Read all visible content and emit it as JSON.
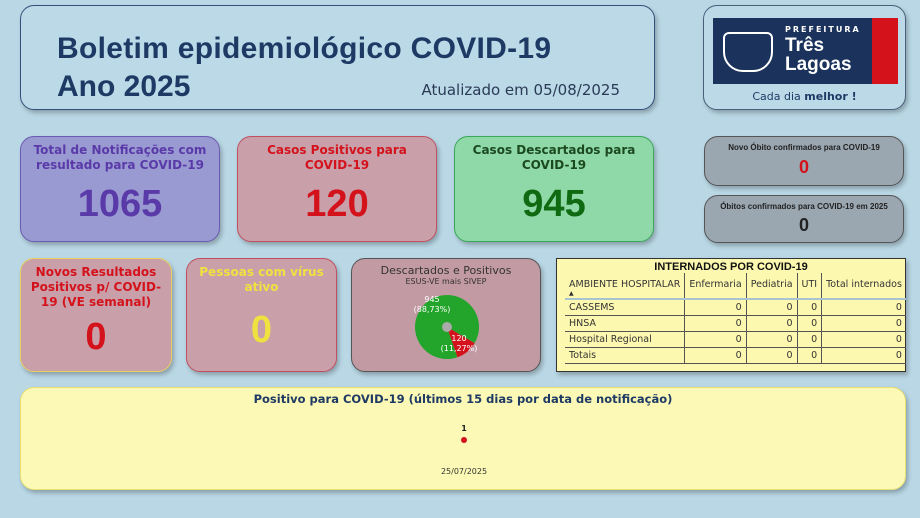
{
  "header": {
    "title_line1": "Boletim epidemiológico COVID-19",
    "title_line2": "Ano 2025",
    "updated": "Atualizado em 05/08/2025"
  },
  "logo": {
    "prefeitura": "PREFEITURA",
    "city_line1": "Três",
    "city_line2": "Lagoas",
    "slogan_pre": "Cada dia ",
    "slogan_bold": "melhor !",
    "colors": {
      "navy": "#1b335c",
      "red": "#d4121c"
    }
  },
  "cards": {
    "total": {
      "label": "Total de Notificações com resultado para COVID-19",
      "value": "1065",
      "color": "#5a3aa8"
    },
    "positivos": {
      "label": "Casos Positivos para COVID-19",
      "value": "120",
      "color": "#d4121c"
    },
    "descartados": {
      "label": "Casos Descartados para COVID-19",
      "value": "945",
      "color": "#0f6a12"
    },
    "novo_obito": {
      "label": "Novo Óbito confirmados para COVID-19",
      "value": "0"
    },
    "obitos": {
      "label": "Óbitos confirmados para COVID-19 em 2025",
      "value": "0"
    },
    "novos_resultados": {
      "label": "Novos Resultados Positivos p/ COVID-19 (VE semanal)",
      "value": "0"
    },
    "virus_ativo": {
      "label": "Pessoas com vírus ativo",
      "value": "0"
    }
  },
  "pie": {
    "title": "Descartados e Positivos",
    "subtitle": "ESUS-VE mais SIVEP",
    "slices": [
      {
        "value": 945,
        "label": "945",
        "pct": "(88,73%)",
        "color": "#22a52a"
      },
      {
        "value": 120,
        "label": "120",
        "pct": "(11,27%)",
        "color": "#d4121c"
      }
    ]
  },
  "table": {
    "title": "INTERNADOS POR COVID-19",
    "columns": [
      "AMBIENTE HOSPITALAR",
      "Enfermaria",
      "Pediatria",
      "UTI",
      "Total internados"
    ],
    "rows": [
      [
        "CASSEMS",
        "0",
        "0",
        "0",
        "0"
      ],
      [
        "HNSA",
        "0",
        "0",
        "0",
        "0"
      ],
      [
        "Hospital Regional",
        "0",
        "0",
        "0",
        "0"
      ],
      [
        "Totais",
        "0",
        "0",
        "0",
        "0"
      ]
    ]
  },
  "chart_data": {
    "type": "scatter",
    "title": "Positivo para COVID-19 (últimos 15 dias por data de notificação)",
    "x": [
      "25/07/2025"
    ],
    "values": [
      1
    ],
    "data_labels": [
      "1"
    ],
    "color": "#d4121c"
  }
}
